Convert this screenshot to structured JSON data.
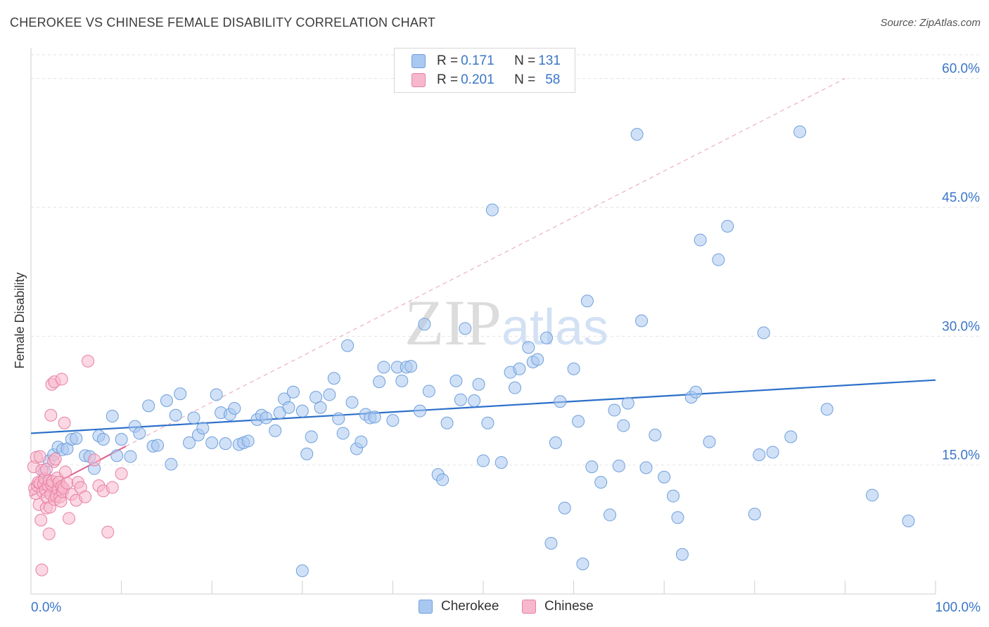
{
  "chart_data": {
    "type": "scatter",
    "title": "CHEROKEE VS CHINESE FEMALE DISABILITY CORRELATION CHART",
    "source": "Source: ZipAtlas.com",
    "ylabel": "Female Disability",
    "xlabel": "",
    "xlim": [
      0,
      100
    ],
    "ylim": [
      0,
      63
    ],
    "x_tick_labels": {
      "left": "0.0%",
      "right": "100.0%"
    },
    "y_ticks": [
      {
        "value": 15,
        "label": "15.0%"
      },
      {
        "value": 30,
        "label": "30.0%"
      },
      {
        "value": 45,
        "label": "45.0%"
      },
      {
        "value": 60,
        "label": "60.0%"
      }
    ],
    "watermark": "ZIPatlas",
    "legend": [
      {
        "name": "Cherokee",
        "r_label": "R = ",
        "r": "0.171",
        "n_label": "N = ",
        "n": "131",
        "color": "#a9c8f0",
        "stroke": "#6f9fdc"
      },
      {
        "name": "Chinese",
        "r_label": "R = ",
        "r": "0.201",
        "n_label": "N = ",
        "n": "58",
        "color": "#f7b8cc",
        "stroke": "#e87fa3"
      }
    ],
    "series": [
      {
        "name": "Cherokee",
        "color": "#a9c8f0",
        "stroke": "#6f9fdc",
        "trend": {
          "x": [
            0,
            100
          ],
          "y": [
            18.7,
            24.9
          ],
          "color": "#2b6fc9"
        },
        "points": [
          [
            1.5,
            14.2
          ],
          [
            2,
            15.5
          ],
          [
            2.5,
            16.2
          ],
          [
            3,
            17.1
          ],
          [
            3.5,
            16.8
          ],
          [
            4,
            16.9
          ],
          [
            4.5,
            18.0
          ],
          [
            5,
            18.1
          ],
          [
            6,
            16.1
          ],
          [
            6.5,
            16.0
          ],
          [
            7,
            14.6
          ],
          [
            7.5,
            18.4
          ],
          [
            8,
            18.0
          ],
          [
            9,
            20.7
          ],
          [
            9.5,
            16.1
          ],
          [
            10,
            18.0
          ],
          [
            11,
            16.0
          ],
          [
            11.5,
            19.5
          ],
          [
            12,
            18.7
          ],
          [
            13,
            21.9
          ],
          [
            13.5,
            17.2
          ],
          [
            14,
            17.3
          ],
          [
            15,
            22.5
          ],
          [
            15.5,
            15.1
          ],
          [
            16,
            20.8
          ],
          [
            16.5,
            23.3
          ],
          [
            17.5,
            17.6
          ],
          [
            18,
            20.5
          ],
          [
            18.5,
            18.5
          ],
          [
            19,
            19.3
          ],
          [
            20,
            17.6
          ],
          [
            20.5,
            23.2
          ],
          [
            21,
            21.1
          ],
          [
            21.5,
            17.5
          ],
          [
            22,
            20.9
          ],
          [
            22.5,
            21.6
          ],
          [
            23,
            17.4
          ],
          [
            23.5,
            17.6
          ],
          [
            24,
            17.8
          ],
          [
            25,
            20.3
          ],
          [
            25.5,
            20.8
          ],
          [
            26,
            20.5
          ],
          [
            27,
            19.0
          ],
          [
            27.5,
            21.1
          ],
          [
            28,
            22.7
          ],
          [
            28.5,
            21.7
          ],
          [
            29,
            23.5
          ],
          [
            30,
            21.3
          ],
          [
            30.5,
            16.3
          ],
          [
            31,
            18.3
          ],
          [
            31.5,
            22.9
          ],
          [
            32,
            21.7
          ],
          [
            33,
            23.2
          ],
          [
            33.5,
            25.1
          ],
          [
            34,
            20.4
          ],
          [
            34.5,
            18.7
          ],
          [
            35,
            28.9
          ],
          [
            35.5,
            22.3
          ],
          [
            36,
            16.9
          ],
          [
            36.5,
            17.7
          ],
          [
            37,
            20.9
          ],
          [
            37.5,
            20.5
          ],
          [
            38,
            20.6
          ],
          [
            38.5,
            24.7
          ],
          [
            39,
            26.4
          ],
          [
            40,
            20.2
          ],
          [
            40.5,
            26.4
          ],
          [
            41,
            24.8
          ],
          [
            41.5,
            26.4
          ],
          [
            42,
            26.5
          ],
          [
            43,
            21.3
          ],
          [
            43.5,
            31.4
          ],
          [
            44,
            23.6
          ],
          [
            45,
            13.9
          ],
          [
            45.5,
            13.3
          ],
          [
            46,
            19.9
          ],
          [
            47,
            24.8
          ],
          [
            47.5,
            22.6
          ],
          [
            48,
            30.9
          ],
          [
            49,
            22.5
          ],
          [
            49.5,
            24.4
          ],
          [
            50,
            15.5
          ],
          [
            50.5,
            19.9
          ],
          [
            51,
            44.7
          ],
          [
            52,
            15.3
          ],
          [
            53,
            25.8
          ],
          [
            53.5,
            24.0
          ],
          [
            54,
            26.2
          ],
          [
            55,
            28.7
          ],
          [
            55.5,
            27.0
          ],
          [
            56,
            27.3
          ],
          [
            57,
            29.8
          ],
          [
            57.5,
            5.9
          ],
          [
            58,
            17.6
          ],
          [
            58.5,
            22.4
          ],
          [
            59,
            10.0
          ],
          [
            60,
            26.2
          ],
          [
            60.5,
            20.1
          ],
          [
            61,
            3.5
          ],
          [
            61.5,
            34.1
          ],
          [
            62,
            14.8
          ],
          [
            63,
            13.0
          ],
          [
            64,
            9.2
          ],
          [
            64.5,
            21.4
          ],
          [
            65,
            14.9
          ],
          [
            65.5,
            19.6
          ],
          [
            66,
            22.2
          ],
          [
            67,
            53.5
          ],
          [
            67.5,
            31.8
          ],
          [
            68,
            14.7
          ],
          [
            69,
            18.5
          ],
          [
            70,
            13.6
          ],
          [
            71,
            11.4
          ],
          [
            71.5,
            8.9
          ],
          [
            72,
            4.6
          ],
          [
            73,
            22.9
          ],
          [
            73.5,
            23.5
          ],
          [
            74,
            41.2
          ],
          [
            75,
            17.7
          ],
          [
            76,
            38.9
          ],
          [
            77,
            42.8
          ],
          [
            80,
            9.3
          ],
          [
            80.5,
            16.2
          ],
          [
            81,
            30.4
          ],
          [
            82,
            16.5
          ],
          [
            84,
            18.3
          ],
          [
            85,
            53.8
          ],
          [
            88,
            21.5
          ],
          [
            93,
            11.5
          ],
          [
            97,
            8.5
          ],
          [
            30,
            2.7
          ]
        ]
      },
      {
        "name": "Chinese",
        "color": "#f7b8cc",
        "stroke": "#e87fa3",
        "trend": {
          "x": [
            0,
            10.5
          ],
          "y": [
            11.4,
            17.2
          ],
          "color": "#e0678f"
        },
        "extrapolation": {
          "x": [
            10.5,
            90
          ],
          "y": [
            17.2,
            60
          ],
          "color": "#e7a0b8"
        },
        "points": [
          [
            0.3,
            14.8
          ],
          [
            0.4,
            12.3
          ],
          [
            0.5,
            11.7
          ],
          [
            0.6,
            15.9
          ],
          [
            0.7,
            12.6
          ],
          [
            0.8,
            13.0
          ],
          [
            0.9,
            10.4
          ],
          [
            1.0,
            12.9
          ],
          [
            1.1,
            8.6
          ],
          [
            1.2,
            14.4
          ],
          [
            1.3,
            11.9
          ],
          [
            1.4,
            12.8
          ],
          [
            1.5,
            13.4
          ],
          [
            1.6,
            12.1
          ],
          [
            1.7,
            10.0
          ],
          [
            1.8,
            11.2
          ],
          [
            1.9,
            12.6
          ],
          [
            2.0,
            13.2
          ],
          [
            2.1,
            10.1
          ],
          [
            2.2,
            11.6
          ],
          [
            2.3,
            12.7
          ],
          [
            2.4,
            13.1
          ],
          [
            2.5,
            15.4
          ],
          [
            2.6,
            11.0
          ],
          [
            2.7,
            15.7
          ],
          [
            2.8,
            11.4
          ],
          [
            2.9,
            13.5
          ],
          [
            3.0,
            12.2
          ],
          [
            3.1,
            13.0
          ],
          [
            3.2,
            11.3
          ],
          [
            3.3,
            10.8
          ],
          [
            3.4,
            12.5
          ],
          [
            3.5,
            11.9
          ],
          [
            3.6,
            12.3
          ],
          [
            3.8,
            14.2
          ],
          [
            4.0,
            12.9
          ],
          [
            4.2,
            8.8
          ],
          [
            4.5,
            11.6
          ],
          [
            5.0,
            10.9
          ],
          [
            5.2,
            13.0
          ],
          [
            5.5,
            12.4
          ],
          [
            6.0,
            11.3
          ],
          [
            6.3,
            27.1
          ],
          [
            7.0,
            15.6
          ],
          [
            7.5,
            12.6
          ],
          [
            8.0,
            12.0
          ],
          [
            8.5,
            7.2
          ],
          [
            9.0,
            12.4
          ],
          [
            10.0,
            14.0
          ],
          [
            2.0,
            7.0
          ],
          [
            1.2,
            2.8
          ],
          [
            2.3,
            24.4
          ],
          [
            2.6,
            24.7
          ],
          [
            3.4,
            25.0
          ],
          [
            2.2,
            20.8
          ],
          [
            3.7,
            19.9
          ],
          [
            1.7,
            14.5
          ],
          [
            1.0,
            16.0
          ]
        ]
      }
    ]
  }
}
